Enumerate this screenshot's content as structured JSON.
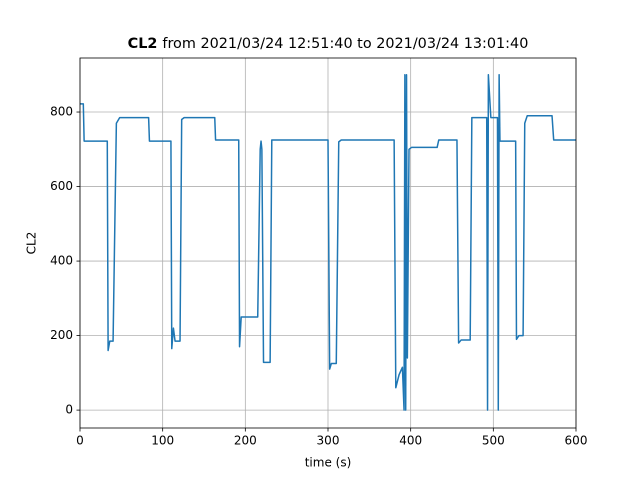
{
  "chart_data": {
    "type": "line",
    "title": "CL2",
    "title_suffix": "from 2021/03/24 12:51:40 to 2021/03/24 13:01:40",
    "x_label": "time (s)",
    "y_label": "CL2",
    "color": "#1f77b4",
    "grid": true,
    "xlim": [
      0,
      600
    ],
    "ylim": [
      -48,
      945
    ],
    "xticks": [
      0,
      100,
      200,
      300,
      400,
      500,
      600
    ],
    "yticks": [
      0,
      200,
      400,
      600,
      800
    ],
    "x": [
      0,
      4,
      5,
      33,
      34,
      36,
      40,
      44,
      48,
      83,
      84,
      110,
      111,
      113,
      115,
      121,
      123,
      126,
      163,
      164,
      192,
      193,
      195,
      215,
      218,
      219,
      220,
      222,
      230,
      232,
      300,
      302,
      304,
      310,
      313,
      316,
      380,
      382,
      386,
      390,
      392,
      393,
      394,
      395,
      396,
      398,
      401,
      432,
      434,
      456,
      458,
      461,
      472,
      474,
      492,
      493,
      494,
      497,
      505,
      506,
      507,
      508,
      527,
      528,
      531,
      536,
      538,
      541,
      571,
      573,
      600
    ],
    "values": [
      822,
      822,
      722,
      722,
      160,
      185,
      185,
      770,
      785,
      785,
      722,
      722,
      165,
      220,
      185,
      185,
      780,
      785,
      785,
      725,
      725,
      170,
      250,
      250,
      700,
      722,
      700,
      128,
      128,
      725,
      725,
      110,
      125,
      125,
      720,
      725,
      725,
      60,
      95,
      115,
      0,
      900,
      0,
      900,
      140,
      700,
      705,
      705,
      725,
      725,
      180,
      188,
      188,
      785,
      785,
      0,
      900,
      785,
      785,
      0,
      900,
      722,
      722,
      190,
      200,
      200,
      770,
      790,
      790,
      725,
      725
    ]
  }
}
